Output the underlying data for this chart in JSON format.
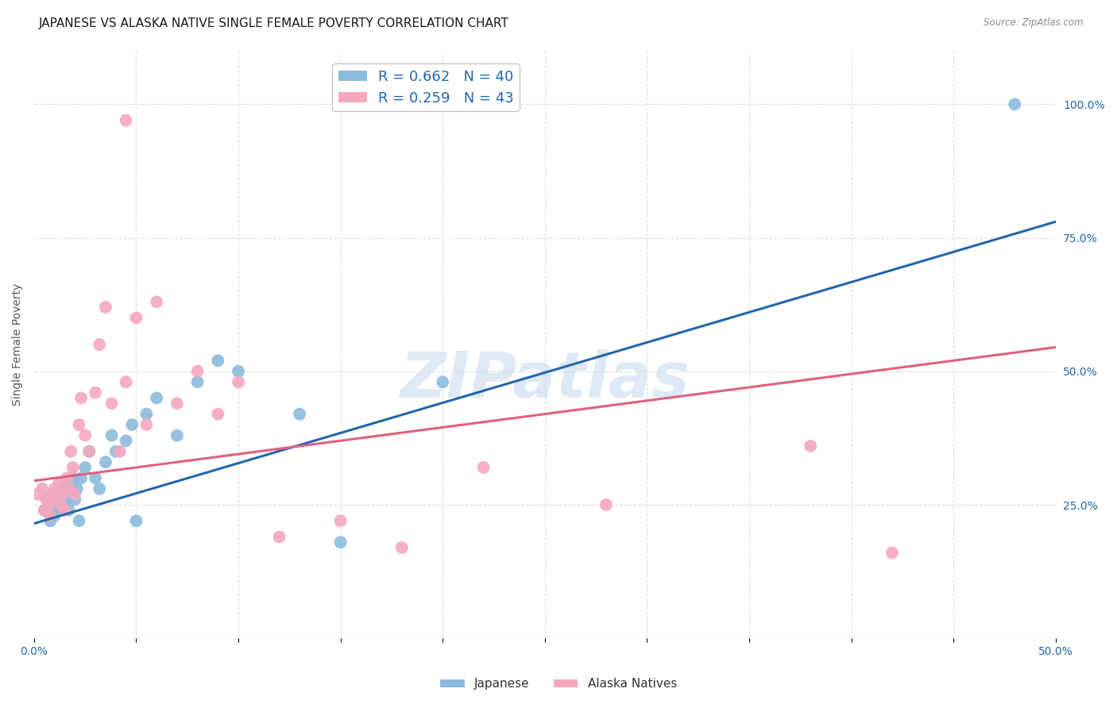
{
  "title": "JAPANESE VS ALASKA NATIVE SINGLE FEMALE POVERTY CORRELATION CHART",
  "source": "Source: ZipAtlas.com",
  "ylabel": "Single Female Poverty",
  "ylabel_right_labels": [
    "100.0%",
    "75.0%",
    "50.0%",
    "25.0%"
  ],
  "ylabel_right_values": [
    1.0,
    0.75,
    0.5,
    0.25
  ],
  "xlim": [
    0.0,
    0.5
  ],
  "ylim": [
    0.0,
    1.1
  ],
  "watermark": "ZIPatlas",
  "japanese_color": "#8BBCDD",
  "alaska_color": "#F4A8BE",
  "japanese_line_color": "#2166ac",
  "alaska_line_color": "#e06080",
  "background_color": "#ffffff",
  "grid_color": "#e0e0e0",
  "legend_R1": "R = 0.662",
  "legend_N1": "N = 40",
  "legend_R2": "R = 0.259",
  "legend_N2": "N = 43",
  "legend_color1": "#8BBCDD",
  "legend_color2": "#F4A8BE",
  "label_color": "#2166ac",
  "japanese_x": [
    0.005,
    0.007,
    0.008,
    0.009,
    0.01,
    0.01,
    0.011,
    0.012,
    0.013,
    0.014,
    0.015,
    0.015,
    0.016,
    0.017,
    0.018,
    0.019,
    0.02,
    0.021,
    0.022,
    0.023,
    0.025,
    0.027,
    0.03,
    0.032,
    0.035,
    0.038,
    0.04,
    0.045,
    0.048,
    0.05,
    0.055,
    0.06,
    0.07,
    0.08,
    0.09,
    0.1,
    0.13,
    0.15,
    0.2,
    0.48
  ],
  "japanese_y": [
    0.24,
    0.26,
    0.22,
    0.25,
    0.27,
    0.23,
    0.26,
    0.28,
    0.24,
    0.27,
    0.25,
    0.29,
    0.26,
    0.24,
    0.28,
    0.3,
    0.26,
    0.28,
    0.22,
    0.3,
    0.32,
    0.35,
    0.3,
    0.28,
    0.33,
    0.38,
    0.35,
    0.37,
    0.4,
    0.22,
    0.42,
    0.45,
    0.38,
    0.48,
    0.52,
    0.5,
    0.42,
    0.18,
    0.48,
    1.0
  ],
  "alaska_x": [
    0.002,
    0.004,
    0.005,
    0.006,
    0.007,
    0.008,
    0.009,
    0.01,
    0.011,
    0.012,
    0.013,
    0.014,
    0.015,
    0.016,
    0.017,
    0.018,
    0.019,
    0.02,
    0.022,
    0.023,
    0.025,
    0.027,
    0.03,
    0.032,
    0.035,
    0.038,
    0.042,
    0.045,
    0.05,
    0.055,
    0.06,
    0.07,
    0.08,
    0.09,
    0.1,
    0.12,
    0.15,
    0.18,
    0.22,
    0.28,
    0.38,
    0.42,
    0.045
  ],
  "alaska_y": [
    0.27,
    0.28,
    0.24,
    0.26,
    0.25,
    0.23,
    0.27,
    0.28,
    0.26,
    0.29,
    0.25,
    0.27,
    0.24,
    0.3,
    0.28,
    0.35,
    0.32,
    0.27,
    0.4,
    0.45,
    0.38,
    0.35,
    0.46,
    0.55,
    0.62,
    0.44,
    0.35,
    0.48,
    0.6,
    0.4,
    0.63,
    0.44,
    0.5,
    0.42,
    0.48,
    0.19,
    0.22,
    0.17,
    0.32,
    0.25,
    0.36,
    0.16,
    0.97
  ],
  "japanese_trend_x": [
    0.0,
    0.5
  ],
  "japanese_trend_y": [
    0.215,
    0.78
  ],
  "alaska_trend_x": [
    0.0,
    0.5
  ],
  "alaska_trend_y": [
    0.295,
    0.545
  ],
  "x_minor_ticks": [
    0.05,
    0.1,
    0.15,
    0.2,
    0.25,
    0.3,
    0.35,
    0.4,
    0.45
  ],
  "title_fontsize": 11,
  "axis_label_fontsize": 10,
  "tick_fontsize": 10,
  "legend_fontsize": 13
}
